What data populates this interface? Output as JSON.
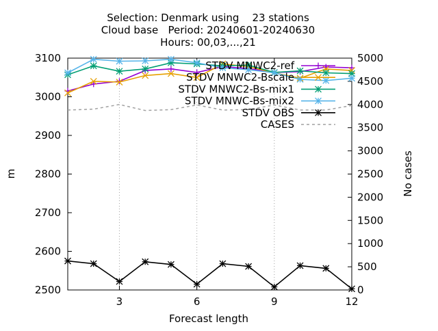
{
  "chart_data": {
    "type": "line",
    "title_lines": [
      "Selection: Denmark using    23 stations",
      "Cloud base   Period: 20240601-20240630",
      "Hours: 00,03,...,21"
    ],
    "xlabel": "Forecast length",
    "ylabel": "m",
    "y2label": "No cases",
    "xlim": [
      1,
      12
    ],
    "ylim": [
      2500,
      3100
    ],
    "y2lim": [
      0,
      5000
    ],
    "xticks": [
      3,
      6,
      9,
      12
    ],
    "yticks": [
      2500,
      2600,
      2700,
      2800,
      2900,
      3000,
      3100
    ],
    "y2ticks": [
      0,
      500,
      1000,
      1500,
      2000,
      2500,
      3000,
      3500,
      4000,
      4500,
      5000
    ],
    "grid": true,
    "legend_position": "top-right",
    "x": [
      1,
      2,
      3,
      4,
      5,
      6,
      7,
      8,
      9,
      10,
      11,
      12
    ],
    "series": [
      {
        "name": "STDV MNWC2-ref",
        "color": "#9400d3",
        "marker": "plus",
        "axis": "y1",
        "values": [
          3015,
          3033,
          3040,
          3068,
          3072,
          3063,
          3078,
          3073,
          3063,
          3065,
          3077,
          3075
        ]
      },
      {
        "name": "STDV MNWC2-Bscale",
        "color": "#e69f00",
        "marker": "x",
        "axis": "y1",
        "values": [
          3010,
          3040,
          3038,
          3055,
          3060,
          3050,
          3085,
          3078,
          3062,
          3048,
          3072,
          3068
        ]
      },
      {
        "name": "STDV MNWC2-Bs-mix1",
        "color": "#009e73",
        "marker": "star",
        "axis": "y1",
        "values": [
          3057,
          3080,
          3066,
          3072,
          3088,
          3085,
          3080,
          3082,
          3063,
          3067,
          3062,
          3060
        ]
      },
      {
        "name": "STDV MNWC-Bs-mix2",
        "color": "#56b4e9",
        "marker": "star",
        "axis": "y1",
        "values": [
          3062,
          3097,
          3092,
          3093,
          3097,
          3088,
          3075,
          3070,
          3062,
          3045,
          3042,
          3048
        ]
      },
      {
        "name": "STDV OBS",
        "color": "#000000",
        "marker": "star",
        "axis": "y1",
        "values": [
          2575,
          2568,
          2522,
          2573,
          2566,
          2515,
          2568,
          2561,
          2508,
          2563,
          2556,
          2503
        ]
      },
      {
        "name": "CASES",
        "color": "#a0a0a0",
        "marker": "none",
        "dashed": true,
        "axis": "y2",
        "values": [
          3880,
          3900,
          4000,
          3870,
          3890,
          3990,
          3880,
          3890,
          3990,
          3880,
          3880,
          3980
        ]
      }
    ]
  }
}
